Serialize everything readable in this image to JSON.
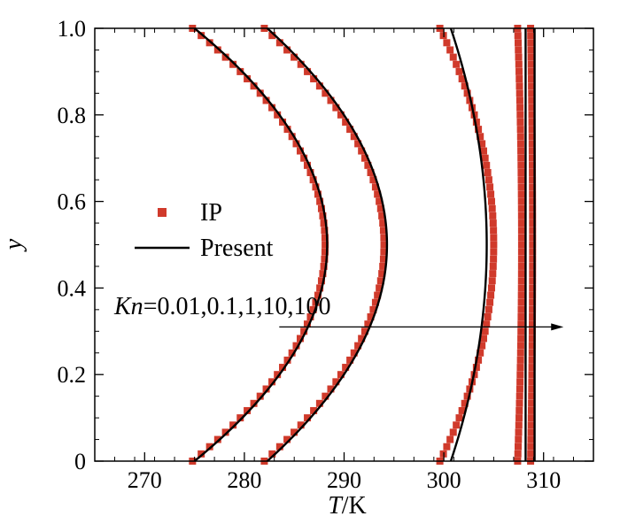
{
  "chart_data": {
    "type": "line",
    "title": "",
    "xlabel": {
      "var": "T",
      "unit": "/K"
    },
    "ylabel": "y",
    "xlim": [
      265,
      315
    ],
    "ylim": [
      0,
      1
    ],
    "xticks": [
      270,
      280,
      290,
      300,
      310
    ],
    "yticks": [
      0,
      0.2,
      0.4,
      0.6,
      0.8,
      1.0
    ],
    "xtick_labels": [
      "270",
      "280",
      "290",
      "300",
      "310"
    ],
    "ytick_labels": [
      "0",
      "0.2",
      "0.4",
      "0.6",
      "0.8",
      "1.0"
    ],
    "grid": false,
    "legend": {
      "placement": "center-left",
      "entries": [
        {
          "label": "IP",
          "marker": "square",
          "color": "#d03a2b"
        },
        {
          "label": "Present",
          "marker": "line",
          "color": "#000000"
        }
      ]
    },
    "annotation": {
      "var": "Kn",
      "text": "=0.01,0.1,1,10,100",
      "arrow_from": [
        283.5,
        0.31
      ],
      "arrow_to": [
        312,
        0.31
      ]
    },
    "profile_shape": "parabolic",
    "series": [
      {
        "kn": 0.01,
        "present": {
          "T_wall": 275.0,
          "T_center": 288.3
        },
        "ip": {
          "T_wall": 274.8,
          "T_center": 288.1
        }
      },
      {
        "kn": 0.1,
        "present": {
          "T_wall": 282.3,
          "T_center": 294.3
        },
        "ip": {
          "T_wall": 282.0,
          "T_center": 294.0
        }
      },
      {
        "kn": 1,
        "present": {
          "T_wall": 300.7,
          "T_center": 304.3
        },
        "ip": {
          "T_wall": 299.6,
          "T_center": 305.0
        }
      },
      {
        "kn": 10,
        "present": {
          "T_wall": 308.2,
          "T_center": 308.2
        },
        "ip": {
          "T_wall": 307.4,
          "T_center": 307.8
        }
      },
      {
        "kn": 100,
        "present": {
          "T_wall": 309.1,
          "T_center": 309.1
        },
        "ip": {
          "T_wall": 308.7,
          "T_center": 308.9
        }
      }
    ],
    "colors": {
      "ip": "#d03a2b",
      "present": "#000000",
      "axis": "#000000"
    }
  }
}
